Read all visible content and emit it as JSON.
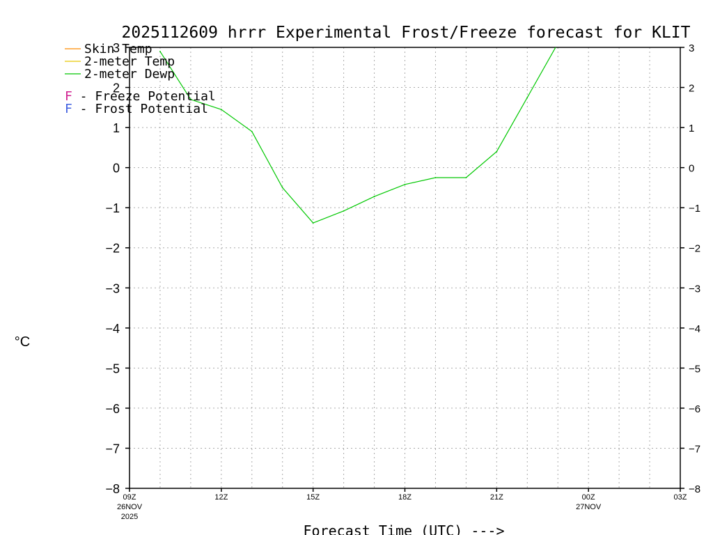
{
  "chart_data": {
    "type": "line",
    "title": "2025112609 hrrr Experimental Frost/Freeze forecast for KLIT",
    "xlabel": "Forecast Time (UTC) --->",
    "ylabel": "°C",
    "ylim": [
      -8,
      3
    ],
    "yticks": [
      3,
      2,
      1,
      0,
      -1,
      -2,
      -3,
      -4,
      -5,
      -6,
      -7,
      -8
    ],
    "xlim": [
      0,
      18
    ],
    "xticks": [
      {
        "hour": 0,
        "label": "09Z",
        "sub1": "26NOV",
        "sub2": "2025"
      },
      {
        "hour": 3,
        "label": "12Z",
        "sub1": "",
        "sub2": ""
      },
      {
        "hour": 6,
        "label": "15Z",
        "sub1": "",
        "sub2": ""
      },
      {
        "hour": 9,
        "label": "18Z",
        "sub1": "",
        "sub2": ""
      },
      {
        "hour": 12,
        "label": "21Z",
        "sub1": "",
        "sub2": ""
      },
      {
        "hour": 15,
        "label": "00Z",
        "sub1": "27NOV",
        "sub2": ""
      },
      {
        "hour": 18,
        "label": "03Z",
        "sub1": "",
        "sub2": ""
      }
    ],
    "grid": true,
    "legend": [
      {
        "label": "Skin Temp",
        "color": "#ff8c00"
      },
      {
        "label": "2-meter Temp",
        "color": "#e6c800"
      },
      {
        "label": "2-meter Dewp",
        "color": "#00c800"
      }
    ],
    "potential_legend": [
      {
        "marker": "F",
        "marker_color": "#d02090",
        "label": " - Freeze Potential"
      },
      {
        "marker": "F",
        "marker_color": "#4060e0",
        "label": " - Frost Potential"
      }
    ],
    "series": [
      {
        "name": "2-meter Dewp",
        "color": "#00c800",
        "x": [
          1,
          2,
          3,
          4,
          5,
          6,
          7,
          8,
          9,
          10,
          11,
          12,
          13,
          14
        ],
        "y": [
          2.9,
          1.7,
          1.45,
          0.9,
          -0.5,
          -1.38,
          -1.08,
          -0.72,
          -0.42,
          -0.25,
          -0.25,
          0.4,
          1.75,
          3.1
        ]
      }
    ]
  }
}
